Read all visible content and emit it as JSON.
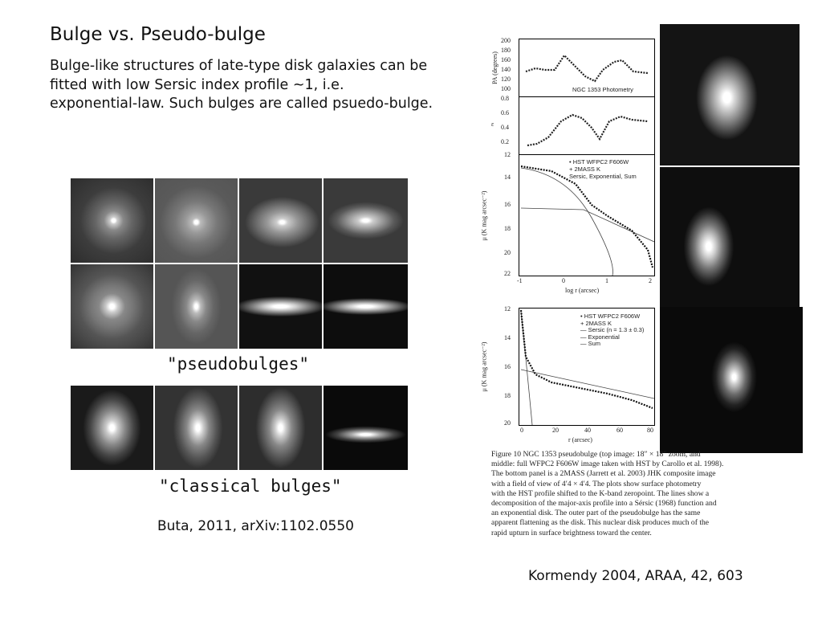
{
  "slide": {
    "title": "Bulge vs. Pseudo-bulge",
    "description_lines": [
      "Bulge-like structures of late-type disk galaxies can be",
      "fitted with low Sersic index profile ~1, i.e.",
      "exponential-law. Such bulges are called psuedo-bulge."
    ]
  },
  "left_figure": {
    "pseudo_label": "\"pseudobulges\"",
    "classical_label": "\"classical bulges\"",
    "citation": "Buta, 2011, arXiv:1102.0550"
  },
  "right_figure": {
    "citation": "Kormendy 2004, ARAA, 42, 603",
    "pa_panel": {
      "ylabel": "PA (degrees)",
      "yticks": [
        "200",
        "180",
        "160",
        "140",
        "120",
        "100"
      ],
      "annotation": "NGC 1353 Photometry"
    },
    "eps_panel": {
      "ylabel": "ε",
      "yticks": [
        "0.8",
        "0.6",
        "0.4",
        "0.2"
      ]
    },
    "log_panel": {
      "ylabel": "μ (K mag arcsec⁻²)",
      "yticks": [
        "12",
        "14",
        "16",
        "18",
        "20",
        "22"
      ],
      "xticks": [
        "-1",
        "0",
        "1",
        "2"
      ],
      "xlabel": "log r (arcsec)",
      "legend": [
        "• HST WFPC2 F606W",
        "+ 2MASS K",
        "Sersic, Exponential, Sum"
      ]
    },
    "lin_panel": {
      "ylabel": "μ (K mag arcsec⁻²)",
      "yticks": [
        "12",
        "14",
        "16",
        "18",
        "20"
      ],
      "xticks": [
        "0",
        "20",
        "40",
        "60",
        "80"
      ],
      "xlabel": "r (arcsec)",
      "legend": [
        "• HST WFPC2 F606W",
        "+ 2MASS K",
        "— Sersic (n = 1.3 ± 0.3)",
        "— Exponential",
        "— Sum"
      ]
    },
    "caption_lines": [
      "Figure 10   NGC 1353 pseudobulge (top image: 18″ × 18″ zoom, and",
      "middle: full WFPC2 F606W image taken with HST by Carollo et al. 1998).",
      "The bottom panel is a 2MASS (Jarrett et al. 2003) JHK composite image",
      "with a field of view of 4′4 × 4′4.  The plots show surface photometry",
      "with the HST profile shifted to the K-band zeropoint.  The lines show a",
      "decomposition of the major-axis profile into a Sérsic (1968) function and",
      "an exponential disk.  The outer part of the pseudobulge has the same",
      "apparent flattening as the disk.  This nuclear disk produces much of the",
      "rapid upturn in surface brightness toward the center."
    ]
  }
}
